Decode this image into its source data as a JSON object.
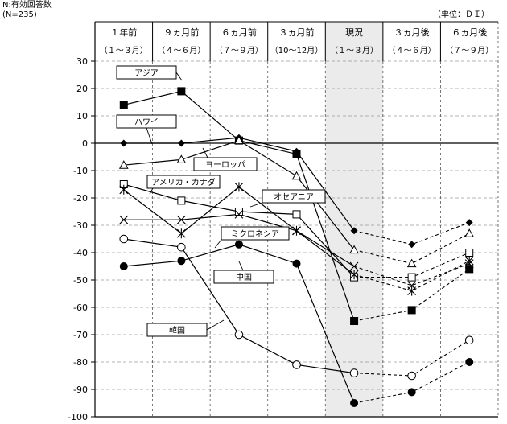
{
  "header": {
    "n_label": "N:有効回答数",
    "n_value": "(N=235)",
    "unit": "（単位：ＤＩ）"
  },
  "chart_data": {
    "type": "line",
    "title": "",
    "xlabel": "",
    "ylabel": "",
    "ylim": [
      -100,
      30
    ],
    "yticks": [
      "30",
      "20",
      "10",
      "0",
      "-10",
      "-20",
      "-30",
      "-40",
      "-50",
      "-60",
      "-70",
      "-80",
      "-90",
      "-100"
    ],
    "grid": true,
    "categories": [
      {
        "top": "１年前",
        "bottom": "（１～３月）"
      },
      {
        "top": "９ヵ月前",
        "bottom": "（４～６月）"
      },
      {
        "top": "６ヵ月前",
        "bottom": "（７～９月）"
      },
      {
        "top": "３ヵ月前",
        "bottom": "（10～12月）"
      },
      {
        "top": "現況",
        "bottom": "（１～３月）"
      },
      {
        "top": "３ヵ月後",
        "bottom": "（４～６月）"
      },
      {
        "top": "６ヵ月後",
        "bottom": "（７～９月）"
      }
    ],
    "highlighted_category": "現況",
    "forecast_line_style": "dashed after 現況",
    "series": [
      {
        "name": "アジア",
        "marker": "filled-square",
        "values": [
          14,
          19,
          1,
          -4,
          -65,
          -61,
          -46
        ]
      },
      {
        "name": "ハワイ",
        "marker": "filled-diamond",
        "values": [
          0,
          0,
          2,
          -3,
          -32,
          -37,
          -29
        ]
      },
      {
        "name": "ヨーロッパ",
        "marker": "open-triangle",
        "values": [
          -8,
          -6,
          1,
          -12,
          -39,
          -44,
          -33
        ]
      },
      {
        "name": "アメリカ・カナダ",
        "marker": "open-square",
        "values": [
          -15,
          -21,
          -25,
          -26,
          -49,
          -49,
          -40
        ]
      },
      {
        "name": "オセアニア",
        "marker": "star",
        "values": [
          -17,
          -33,
          -16,
          -32,
          -48,
          -54,
          -43
        ]
      },
      {
        "name": "ミクロネシア",
        "marker": "x-cross",
        "values": [
          -28,
          -28,
          -26,
          -32,
          -45,
          -52,
          -44
        ]
      },
      {
        "name": "中国",
        "marker": "filled-circle",
        "values": [
          -45,
          -43,
          -37,
          -44,
          -95,
          -91,
          -80
        ]
      },
      {
        "name": "韓国",
        "marker": "open-circle",
        "values": [
          -35,
          -38,
          -70,
          -81,
          -84,
          -85,
          -72
        ]
      }
    ]
  }
}
